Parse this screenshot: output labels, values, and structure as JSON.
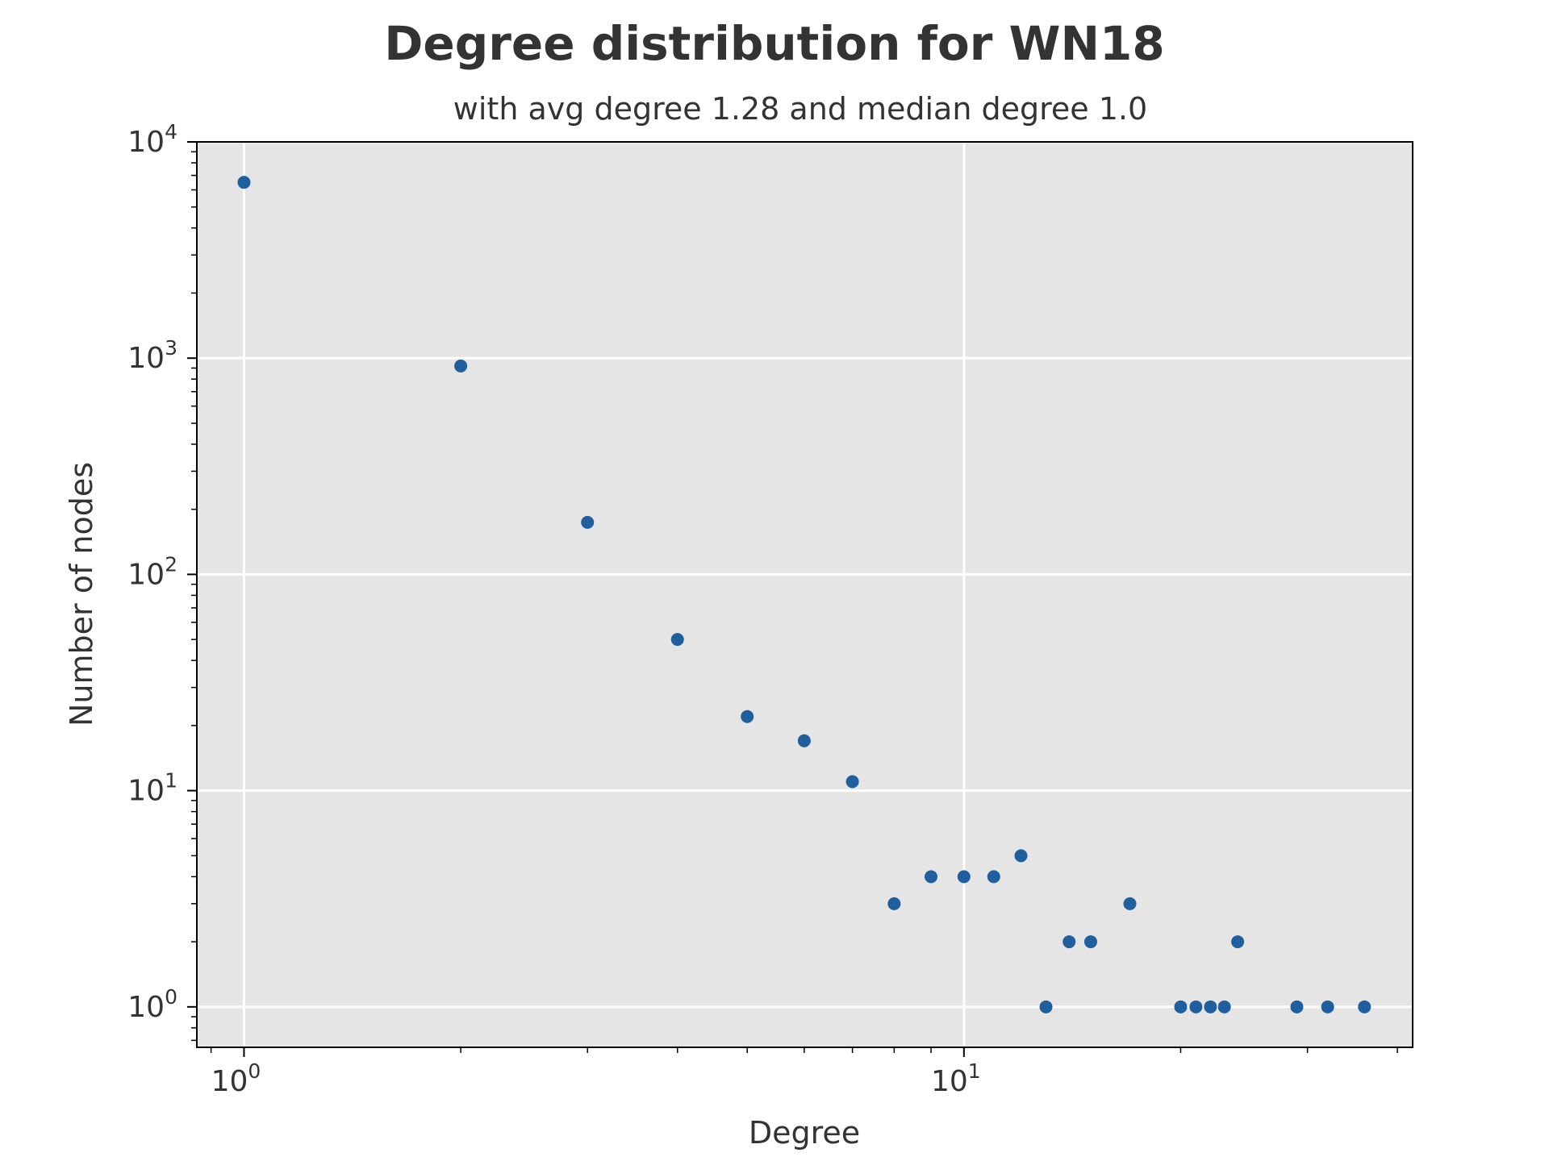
{
  "chart_data": {
    "type": "scatter",
    "title": "Degree distribution for WN18",
    "subtitle": "with avg degree 1.28 and median degree 1.0",
    "xlabel": "Degree",
    "ylabel": "Number of nodes",
    "xscale": "log",
    "yscale": "log",
    "xlim": [
      0.86,
      42
    ],
    "ylim": [
      0.65,
      10000
    ],
    "grid": true,
    "xticks": [
      {
        "value": 1,
        "base": "10",
        "exp": "0"
      },
      {
        "value": 10,
        "base": "10",
        "exp": "1"
      }
    ],
    "yticks": [
      {
        "value": 1,
        "base": "10",
        "exp": "0"
      },
      {
        "value": 10,
        "base": "10",
        "exp": "1"
      },
      {
        "value": 100,
        "base": "10",
        "exp": "2"
      },
      {
        "value": 1000,
        "base": "10",
        "exp": "3"
      },
      {
        "value": 10000,
        "base": "10",
        "exp": "4"
      }
    ],
    "points": [
      {
        "x": 1,
        "y": 6500
      },
      {
        "x": 2,
        "y": 920
      },
      {
        "x": 3,
        "y": 174
      },
      {
        "x": 4,
        "y": 50
      },
      {
        "x": 5,
        "y": 22
      },
      {
        "x": 6,
        "y": 17
      },
      {
        "x": 7,
        "y": 11
      },
      {
        "x": 8,
        "y": 3
      },
      {
        "x": 9,
        "y": 4
      },
      {
        "x": 10,
        "y": 4
      },
      {
        "x": 11,
        "y": 4
      },
      {
        "x": 12,
        "y": 5
      },
      {
        "x": 13,
        "y": 1
      },
      {
        "x": 14,
        "y": 2
      },
      {
        "x": 15,
        "y": 2
      },
      {
        "x": 17,
        "y": 3
      },
      {
        "x": 20,
        "y": 1
      },
      {
        "x": 21,
        "y": 1
      },
      {
        "x": 22,
        "y": 1
      },
      {
        "x": 23,
        "y": 1
      },
      {
        "x": 24,
        "y": 2
      },
      {
        "x": 29,
        "y": 1
      },
      {
        "x": 32,
        "y": 1
      },
      {
        "x": 36,
        "y": 1
      }
    ]
  },
  "colors": {
    "plot_background": "#e5e5e5",
    "grid": "#ffffff",
    "marker": "#1f5f9e",
    "text": "#333333",
    "axes": "#000000"
  }
}
